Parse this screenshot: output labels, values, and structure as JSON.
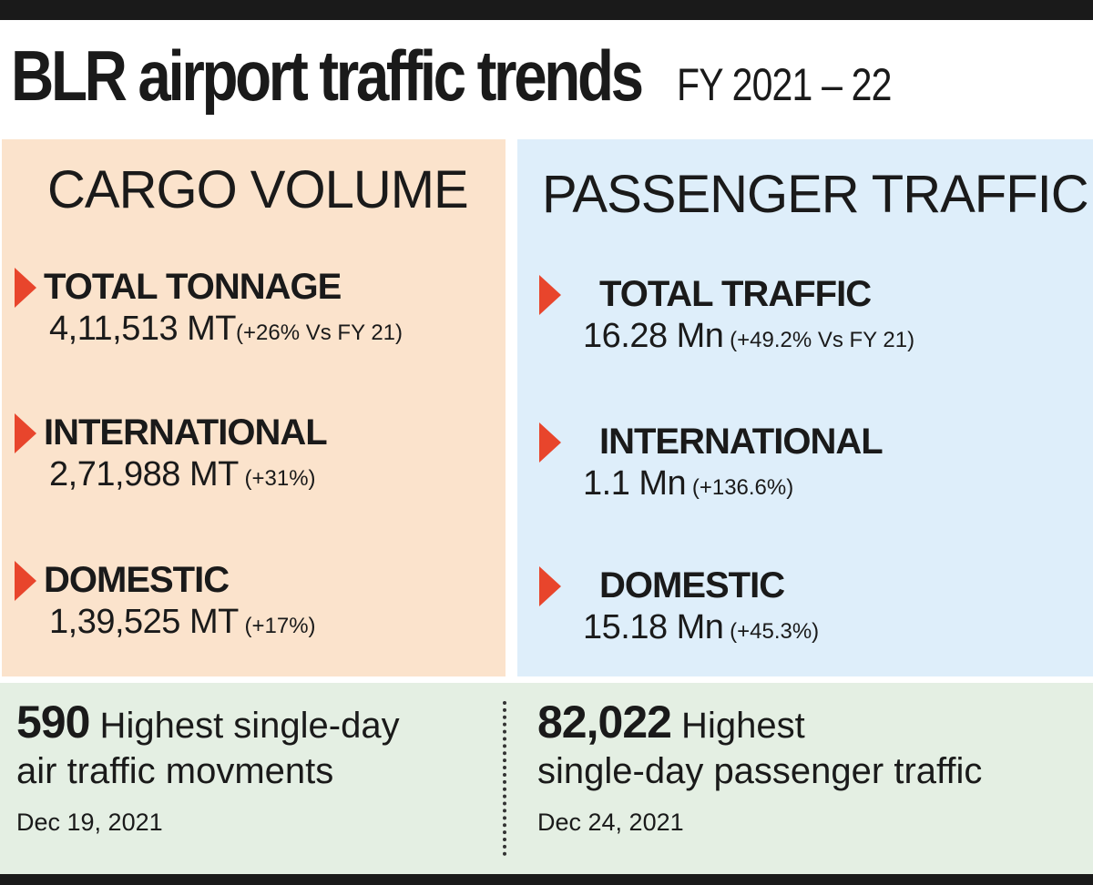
{
  "title": {
    "main": "BLR airport traffic trends",
    "sub": "FY 2021 – 22"
  },
  "cargo": {
    "heading": "CARGO VOLUME",
    "stats": [
      {
        "label": "TOTAL TONNAGE",
        "value": "4,11,513 MT",
        "change": "(+26% Vs FY 21)"
      },
      {
        "label": "INTERNATIONAL",
        "value": "2,71,988 MT",
        "change": " (+31%)"
      },
      {
        "label": "DOMESTIC",
        "value": "1,39,525 MT",
        "change": " (+17%)"
      }
    ]
  },
  "passenger": {
    "heading": "PASSENGER TRAFFIC",
    "stats": [
      {
        "label": "TOTAL TRAFFIC",
        "value": "16.28 Mn",
        "change": " (+49.2% Vs FY 21)"
      },
      {
        "label": "INTERNATIONAL",
        "value": "1.1 Mn",
        "change": " (+136.6%)"
      },
      {
        "label": "DOMESTIC",
        "value": "15.18 Mn",
        "change": " (+45.3%)"
      }
    ]
  },
  "footer": {
    "left": {
      "number": "590",
      "line1": " Highest single-day",
      "line2": "air traffic movments",
      "date": "Dec 19, 2021"
    },
    "right": {
      "number": "82,022",
      "line1": " Highest",
      "line2": "single-day passenger traffic",
      "date": "Dec 24, 2021"
    }
  },
  "colors": {
    "cargo_bg": "#fbe3cc",
    "passenger_bg": "#deeefa",
    "footer_bg": "#e4efe3",
    "arrow": "#e8452c",
    "bars": "#1a1a1a"
  },
  "icons": {
    "bullet": "triangle-right-icon"
  }
}
